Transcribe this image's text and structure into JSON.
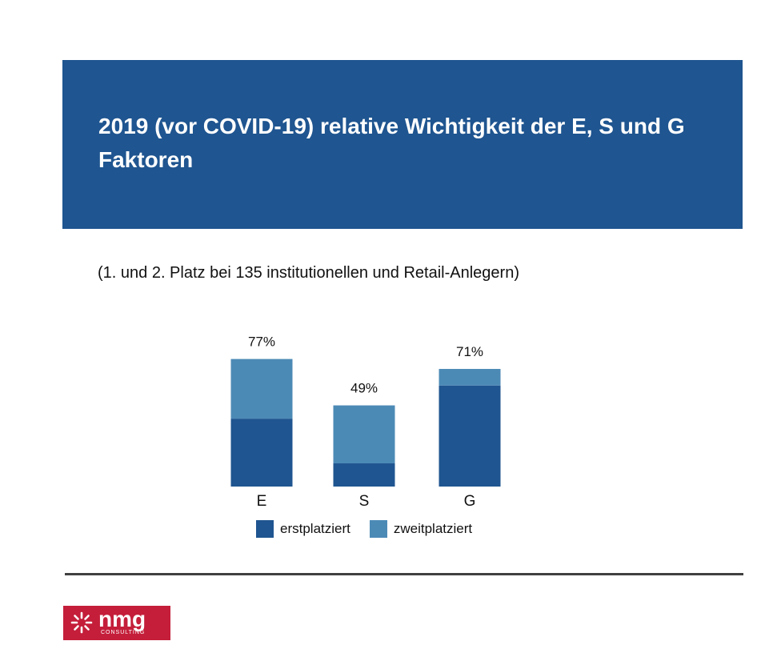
{
  "header": {
    "title": "2019 (vor COVID-19) relative Wichtigkeit der E, S und G Faktoren",
    "subtitle": "(1. und 2. Platz bei 135 institutionellen und Retail-Anlegern)"
  },
  "colors": {
    "band": "#1f5590",
    "erstplatziert": "#1f5590",
    "zweitplatziert": "#4c8ab6",
    "logo": "#c41e3a"
  },
  "chart_data": {
    "type": "bar",
    "stacked": true,
    "categories": [
      "E",
      "S",
      "G"
    ],
    "series": [
      {
        "name": "erstplatziert",
        "values": [
          41,
          14,
          61
        ]
      },
      {
        "name": "zweitplatziert",
        "values": [
          36,
          35,
          10
        ]
      }
    ],
    "totals": [
      "77%",
      "49%",
      "71%"
    ],
    "ylim": [
      0,
      100
    ],
    "grid": false,
    "legend_position": "bottom"
  },
  "legend": {
    "items": [
      {
        "label": "erstplatziert"
      },
      {
        "label": "zweitplatziert"
      }
    ]
  },
  "footer": {
    "logo_word": "nmg",
    "logo_sub": "CONSULTING",
    "logo_icon": "sunburst-logo-icon"
  }
}
